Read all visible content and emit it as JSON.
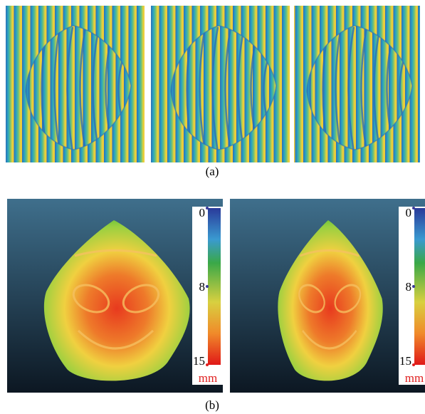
{
  "panel_a": {
    "label": "(a)"
  },
  "panel_b": {
    "label": "(b)",
    "colorbars": [
      {
        "ticks": [
          "0",
          "8",
          "15"
        ],
        "unit": "mm"
      },
      {
        "ticks": [
          "0",
          "8",
          "15"
        ],
        "unit": "mm"
      }
    ]
  }
}
